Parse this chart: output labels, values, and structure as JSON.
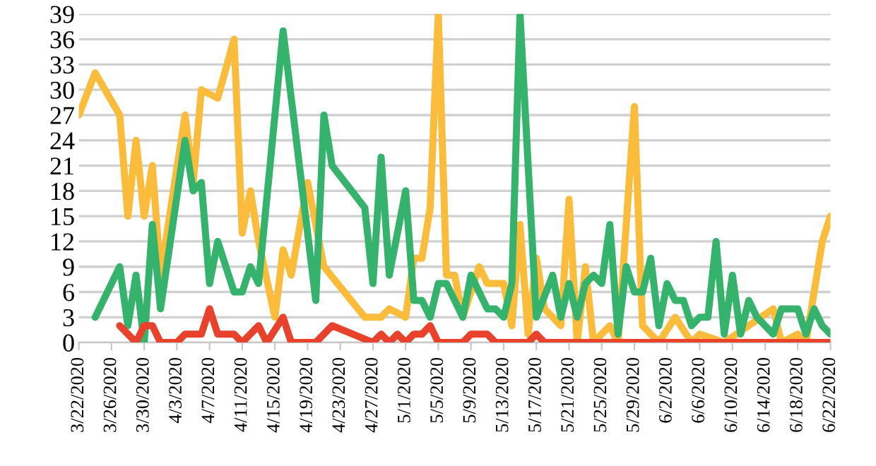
{
  "chart_data": {
    "type": "line",
    "xlim": [
      "2020-03-22",
      "2020-06-22"
    ],
    "ylim": [
      0,
      39
    ],
    "yticks": [
      0,
      3,
      6,
      9,
      12,
      15,
      18,
      21,
      24,
      27,
      30,
      33,
      36,
      39
    ],
    "xticks": [
      {
        "value": "2020-03-22",
        "label": "3/22/2020"
      },
      {
        "value": "2020-03-26",
        "label": "3/26/2020"
      },
      {
        "value": "2020-03-30",
        "label": "3/30/2020"
      },
      {
        "value": "2020-04-03",
        "label": "4/3/2020"
      },
      {
        "value": "2020-04-07",
        "label": "4/7/2020"
      },
      {
        "value": "2020-04-11",
        "label": "4/11/2020"
      },
      {
        "value": "2020-04-15",
        "label": "4/15/2020"
      },
      {
        "value": "2020-04-19",
        "label": "4/19/2020"
      },
      {
        "value": "2020-04-23",
        "label": "4/23/2020"
      },
      {
        "value": "2020-04-27",
        "label": "4/27/2020"
      },
      {
        "value": "2020-05-01",
        "label": "5/1/2020"
      },
      {
        "value": "2020-05-05",
        "label": "5/5/2020"
      },
      {
        "value": "2020-05-09",
        "label": "5/9/2020"
      },
      {
        "value": "2020-05-13",
        "label": "5/13/2020"
      },
      {
        "value": "2020-05-17",
        "label": "5/17/2020"
      },
      {
        "value": "2020-05-21",
        "label": "5/21/2020"
      },
      {
        "value": "2020-05-25",
        "label": "5/25/2020"
      },
      {
        "value": "2020-05-29",
        "label": "5/29/2020"
      },
      {
        "value": "2020-06-02",
        "label": "6/2/2020"
      },
      {
        "value": "2020-06-06",
        "label": "6/6/2020"
      },
      {
        "value": "2020-06-10",
        "label": "6/10/2020"
      },
      {
        "value": "2020-06-14",
        "label": "6/14/2020"
      },
      {
        "value": "2020-06-18",
        "label": "6/18/2020"
      },
      {
        "value": "2020-06-22",
        "label": "6/22/2020"
      }
    ],
    "grid": "y",
    "line_style": "solid",
    "series": [
      {
        "color": "#fbbc3c",
        "x": [
          "2020-03-22",
          "2020-03-24",
          "2020-03-27",
          "2020-03-28",
          "2020-03-29",
          "2020-03-30",
          "2020-03-31",
          "2020-04-01",
          "2020-04-04",
          "2020-04-05",
          "2020-04-06",
          "2020-04-08",
          "2020-04-10",
          "2020-04-11",
          "2020-04-12",
          "2020-04-13",
          "2020-04-15",
          "2020-04-16",
          "2020-04-17",
          "2020-04-19",
          "2020-04-21",
          "2020-04-26",
          "2020-04-28",
          "2020-04-29",
          "2020-05-01",
          "2020-05-02",
          "2020-05-03",
          "2020-05-04",
          "2020-05-05",
          "2020-05-06",
          "2020-05-07",
          "2020-05-08",
          "2020-05-10",
          "2020-05-11",
          "2020-05-13",
          "2020-05-14",
          "2020-05-15",
          "2020-05-16",
          "2020-05-17",
          "2020-05-18",
          "2020-05-20",
          "2020-05-21",
          "2020-05-22",
          "2020-05-23",
          "2020-05-24",
          "2020-05-26",
          "2020-05-27",
          "2020-05-29",
          "2020-05-30",
          "2020-06-01",
          "2020-06-03",
          "2020-06-05",
          "2020-06-06",
          "2020-06-09",
          "2020-06-15",
          "2020-06-16",
          "2020-06-18",
          "2020-06-19",
          "2020-06-21",
          "2020-06-22"
        ],
        "values": [
          27,
          32,
          27,
          15,
          24,
          15,
          21,
          8,
          27,
          19,
          30,
          29,
          36,
          13,
          18,
          12,
          3,
          11,
          8,
          19,
          9,
          3,
          3,
          4,
          3,
          10,
          10,
          16,
          39,
          8,
          8,
          3,
          9,
          7,
          7,
          2,
          14,
          1,
          10,
          4,
          2,
          17,
          0,
          9,
          0,
          2,
          0,
          28,
          2,
          0,
          3,
          0,
          1,
          0,
          4,
          0,
          1,
          0,
          12,
          15
        ]
      },
      {
        "color": "#35b26b",
        "x": [
          "2020-03-24",
          "2020-03-27",
          "2020-03-28",
          "2020-03-29",
          "2020-03-30",
          "2020-03-31",
          "2020-04-01",
          "2020-04-04",
          "2020-04-05",
          "2020-04-06",
          "2020-04-07",
          "2020-04-08",
          "2020-04-10",
          "2020-04-11",
          "2020-04-12",
          "2020-04-13",
          "2020-04-16",
          "2020-04-20",
          "2020-04-21",
          "2020-04-22",
          "2020-04-26",
          "2020-04-27",
          "2020-04-28",
          "2020-04-29",
          "2020-05-01",
          "2020-05-02",
          "2020-05-03",
          "2020-05-04",
          "2020-05-05",
          "2020-05-06",
          "2020-05-08",
          "2020-05-09",
          "2020-05-11",
          "2020-05-12",
          "2020-05-13",
          "2020-05-14",
          "2020-05-15",
          "2020-05-17",
          "2020-05-19",
          "2020-05-20",
          "2020-05-21",
          "2020-05-22",
          "2020-05-23",
          "2020-05-24",
          "2020-05-25",
          "2020-05-26",
          "2020-05-27",
          "2020-05-28",
          "2020-05-29",
          "2020-05-30",
          "2020-05-31",
          "2020-06-01",
          "2020-06-02",
          "2020-06-03",
          "2020-06-04",
          "2020-06-05",
          "2020-06-06",
          "2020-06-07",
          "2020-06-08",
          "2020-06-09",
          "2020-06-10",
          "2020-06-11",
          "2020-06-12",
          "2020-06-13",
          "2020-06-15",
          "2020-06-16",
          "2020-06-18",
          "2020-06-19",
          "2020-06-20",
          "2020-06-21",
          "2020-06-22"
        ],
        "values": [
          3,
          9,
          2,
          8,
          0,
          14,
          4,
          24,
          18,
          19,
          7,
          12,
          6,
          6,
          9,
          7,
          37,
          5,
          27,
          21,
          16,
          7,
          22,
          8,
          18,
          5,
          5,
          3,
          7,
          7,
          3,
          8,
          4,
          4,
          3,
          7,
          39,
          3,
          8,
          3,
          7,
          3,
          7,
          8,
          7,
          14,
          1,
          9,
          6,
          6,
          10,
          2,
          7,
          5,
          5,
          2,
          3,
          3,
          12,
          1,
          8,
          1,
          5,
          3,
          1,
          4,
          4,
          1,
          4,
          2,
          1
        ]
      },
      {
        "color": "#e8412c",
        "x": [
          "2020-03-27",
          "2020-03-29",
          "2020-03-30",
          "2020-03-31",
          "2020-04-01",
          "2020-04-03",
          "2020-04-04",
          "2020-04-06",
          "2020-04-07",
          "2020-04-08",
          "2020-04-10",
          "2020-04-11",
          "2020-04-13",
          "2020-04-14",
          "2020-04-16",
          "2020-04-17",
          "2020-04-20",
          "2020-04-22",
          "2020-04-27",
          "2020-04-28",
          "2020-04-29",
          "2020-04-30",
          "2020-05-01",
          "2020-05-02",
          "2020-05-03",
          "2020-05-04",
          "2020-05-05",
          "2020-05-08",
          "2020-05-09",
          "2020-05-11",
          "2020-05-12",
          "2020-05-16",
          "2020-05-17",
          "2020-05-18",
          "2020-06-22"
        ],
        "values": [
          2,
          0,
          2,
          2,
          0,
          0,
          1,
          1,
          4,
          1,
          1,
          0,
          2,
          0,
          3,
          0,
          0,
          2,
          0,
          1,
          0,
          1,
          0,
          1,
          1,
          2,
          0,
          0,
          1,
          1,
          0,
          0,
          1,
          0,
          0
        ]
      }
    ]
  }
}
